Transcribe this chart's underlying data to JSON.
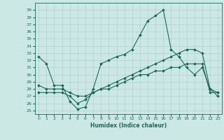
{
  "xlabel": "Humidex (Indice chaleur)",
  "bg_color": "#cce8e4",
  "grid_color": "#aacccc",
  "line_color": "#1a6b5a",
  "xlim": [
    -0.5,
    23.5
  ],
  "ylim": [
    24.5,
    40.0
  ],
  "yticks": [
    25,
    26,
    27,
    28,
    29,
    30,
    31,
    32,
    33,
    34,
    35,
    36,
    37,
    38,
    39
  ],
  "xticks": [
    0,
    1,
    2,
    3,
    4,
    5,
    6,
    7,
    8,
    9,
    10,
    11,
    12,
    13,
    14,
    15,
    16,
    17,
    18,
    19,
    20,
    21,
    22,
    23
  ],
  "line1_x": [
    0,
    1,
    2,
    3,
    4,
    5,
    6,
    7,
    8,
    9,
    10,
    11,
    12,
    13,
    14,
    15,
    16,
    17,
    18,
    19,
    20,
    21,
    22,
    23
  ],
  "line1_y": [
    32.5,
    31.5,
    28.5,
    28.5,
    26.3,
    25.2,
    25.5,
    28.0,
    31.5,
    32.0,
    32.5,
    32.8,
    33.5,
    35.5,
    37.5,
    38.2,
    39.0,
    33.5,
    32.5,
    31.0,
    30.0,
    31.0,
    28.0,
    27.5
  ],
  "line2_x": [
    0,
    1,
    2,
    3,
    4,
    5,
    6,
    7,
    8,
    9,
    10,
    11,
    12,
    13,
    14,
    15,
    16,
    17,
    18,
    19,
    20,
    21,
    22,
    23
  ],
  "line2_y": [
    27.5,
    27.5,
    27.5,
    27.5,
    27.0,
    26.0,
    26.5,
    27.5,
    28.0,
    28.0,
    28.5,
    29.0,
    29.5,
    30.0,
    30.0,
    30.5,
    30.5,
    31.0,
    31.0,
    31.5,
    31.5,
    31.5,
    27.5,
    27.5
  ],
  "line3_x": [
    0,
    1,
    2,
    3,
    4,
    5,
    6,
    7,
    8,
    9,
    10,
    11,
    12,
    13,
    14,
    15,
    16,
    17,
    18,
    19,
    20,
    21,
    22,
    23
  ],
  "line3_y": [
    28.5,
    28.0,
    28.0,
    28.0,
    27.5,
    27.0,
    27.0,
    27.5,
    28.0,
    28.5,
    29.0,
    29.5,
    30.0,
    30.5,
    31.0,
    31.5,
    32.0,
    32.5,
    33.0,
    33.5,
    33.5,
    33.0,
    28.0,
    27.0
  ]
}
